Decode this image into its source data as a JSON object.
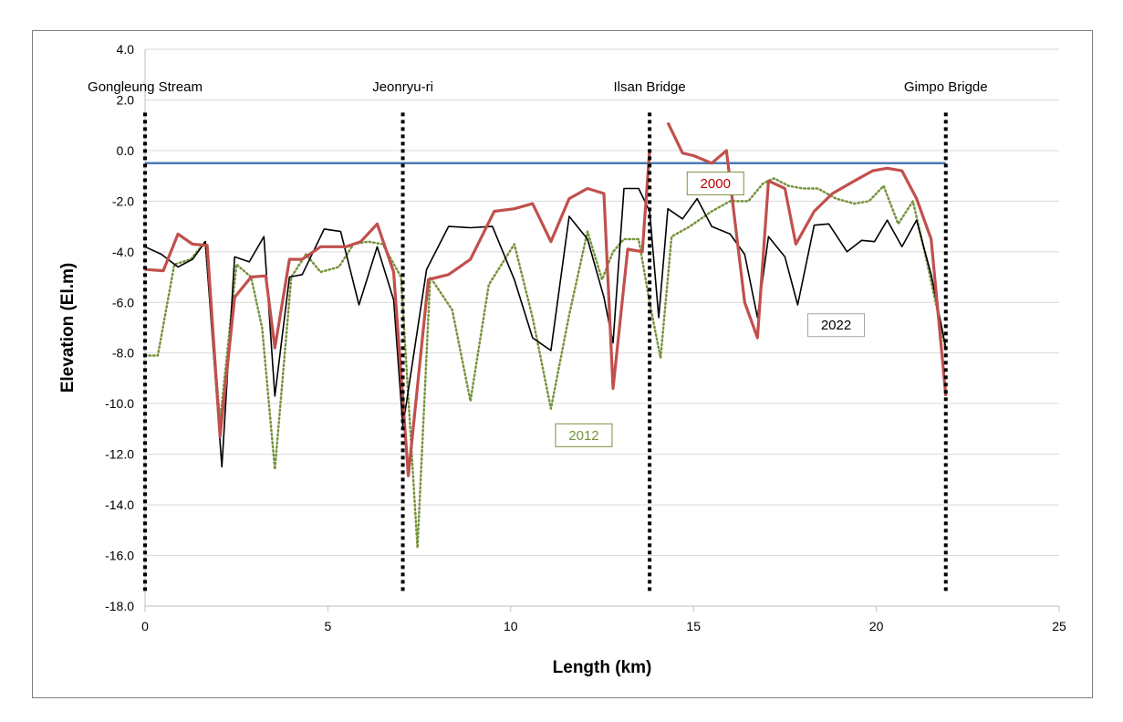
{
  "chart_data": {
    "type": "line",
    "xlabel": "Length (km)",
    "ylabel": "Elevation (El.m)",
    "xlim": [
      0,
      25
    ],
    "ylim": [
      -18,
      4
    ],
    "x_ticks": [
      0,
      5,
      10,
      15,
      20,
      25
    ],
    "y_ticks": [
      -18,
      -16,
      -14,
      -12,
      -10,
      -8,
      -6,
      -4,
      -2,
      0,
      2,
      4
    ],
    "y_tick_labels": [
      "-18.0",
      "-16.0",
      "-14.0",
      "-12.0",
      "-10.0",
      "-8.0",
      "-6.0",
      "-4.0",
      "-2.0",
      "0.0",
      "2.0",
      "4.0"
    ],
    "grid": "horizontal",
    "reference_line": {
      "y": -0.5,
      "color": "#4a7ab5"
    },
    "locations": [
      {
        "name": "Gongleung Stream",
        "x": 0
      },
      {
        "name": "Jeonryu-ri",
        "x": 7.05
      },
      {
        "name": "Ilsan Bridge",
        "x": 13.8
      },
      {
        "name": "Gimpo Brigde",
        "x": 21.9
      }
    ],
    "series": [
      {
        "name": "2000",
        "color": "#c0504d",
        "style": "solid",
        "segments": [
          [
            [
              0,
              -4.7
            ],
            [
              0.5,
              -4.75
            ],
            [
              0.9,
              -3.3
            ],
            [
              1.3,
              -3.7
            ],
            [
              1.7,
              -3.75
            ],
            [
              2.05,
              -11.3
            ],
            [
              2.45,
              -5.8
            ],
            [
              2.9,
              -5.0
            ],
            [
              3.3,
              -4.95
            ],
            [
              3.55,
              -7.8
            ],
            [
              3.95,
              -4.3
            ],
            [
              4.3,
              -4.3
            ],
            [
              4.8,
              -3.8
            ],
            [
              5.5,
              -3.8
            ],
            [
              5.9,
              -3.6
            ],
            [
              6.35,
              -2.9
            ],
            [
              6.8,
              -4.8
            ],
            [
              7.2,
              -12.85
            ],
            [
              7.75,
              -5.1
            ],
            [
              8.3,
              -4.9
            ],
            [
              8.9,
              -4.3
            ],
            [
              9.55,
              -2.4
            ],
            [
              10.1,
              -2.3
            ],
            [
              10.6,
              -2.1
            ],
            [
              11.1,
              -3.6
            ],
            [
              11.6,
              -1.9
            ],
            [
              12.1,
              -1.5
            ],
            [
              12.55,
              -1.7
            ],
            [
              12.8,
              -9.4
            ],
            [
              13.2,
              -3.9
            ],
            [
              13.6,
              -4.0
            ],
            [
              13.8,
              0.0
            ]
          ],
          [
            [
              14.3,
              1.1
            ],
            [
              14.7,
              -0.1
            ],
            [
              15.0,
              -0.2
            ],
            [
              15.5,
              -0.5
            ],
            [
              15.9,
              0.0
            ],
            [
              16.4,
              -6.0
            ],
            [
              16.75,
              -7.4
            ],
            [
              17.05,
              -1.2
            ],
            [
              17.5,
              -1.5
            ],
            [
              17.8,
              -3.7
            ],
            [
              18.3,
              -2.4
            ],
            [
              18.8,
              -1.7
            ],
            [
              19.4,
              -1.2
            ],
            [
              19.9,
              -0.8
            ],
            [
              20.3,
              -0.7
            ],
            [
              20.7,
              -0.8
            ],
            [
              21.1,
              -1.9
            ],
            [
              21.5,
              -3.5
            ],
            [
              21.9,
              -9.7
            ]
          ]
        ]
      },
      {
        "name": "2012",
        "color": "#77933c",
        "style": "dotted",
        "segments": [
          [
            [
              0,
              -8.1
            ],
            [
              0.35,
              -8.1
            ],
            [
              0.8,
              -4.5
            ],
            [
              1.25,
              -4.3
            ],
            [
              1.65,
              -3.6
            ],
            [
              2.05,
              -10.7
            ],
            [
              2.5,
              -4.5
            ],
            [
              2.9,
              -5.0
            ],
            [
              3.2,
              -7.0
            ],
            [
              3.55,
              -12.6
            ],
            [
              4.0,
              -5.0
            ],
            [
              4.4,
              -4.1
            ],
            [
              4.8,
              -4.8
            ],
            [
              5.3,
              -4.6
            ],
            [
              5.7,
              -3.7
            ],
            [
              6.1,
              -3.6
            ],
            [
              6.5,
              -3.7
            ],
            [
              7.0,
              -5.0
            ],
            [
              7.45,
              -15.7
            ],
            [
              7.8,
              -5.0
            ],
            [
              8.4,
              -6.3
            ],
            [
              8.9,
              -9.9
            ],
            [
              9.4,
              -5.3
            ],
            [
              10.1,
              -3.7
            ],
            [
              10.6,
              -6.6
            ],
            [
              11.1,
              -10.2
            ],
            [
              11.6,
              -6.5
            ],
            [
              12.1,
              -3.2
            ],
            [
              12.5,
              -5.1
            ],
            [
              12.8,
              -4.0
            ],
            [
              13.1,
              -3.5
            ],
            [
              13.5,
              -3.5
            ],
            [
              13.8,
              -6.0
            ],
            [
              14.1,
              -8.2
            ],
            [
              14.4,
              -3.4
            ],
            [
              14.9,
              -3.0
            ],
            [
              15.5,
              -2.4
            ],
            [
              16.0,
              -2.0
            ],
            [
              16.5,
              -2.0
            ],
            [
              16.9,
              -1.3
            ],
            [
              17.2,
              -1.1
            ],
            [
              17.6,
              -1.4
            ],
            [
              18.0,
              -1.5
            ],
            [
              18.4,
              -1.5
            ],
            [
              18.9,
              -1.9
            ],
            [
              19.4,
              -2.1
            ],
            [
              19.8,
              -2.0
            ],
            [
              20.2,
              -1.4
            ],
            [
              20.6,
              -2.9
            ],
            [
              21.0,
              -2.0
            ],
            [
              21.4,
              -4.5
            ],
            [
              21.9,
              -7.9
            ]
          ]
        ]
      },
      {
        "name": "2022",
        "color": "#000000",
        "style": "solid",
        "segments": [
          [
            [
              0,
              -3.8
            ],
            [
              0.45,
              -4.1
            ],
            [
              0.9,
              -4.6
            ],
            [
              1.3,
              -4.3
            ],
            [
              1.65,
              -3.6
            ],
            [
              2.1,
              -12.5
            ],
            [
              2.45,
              -4.2
            ],
            [
              2.85,
              -4.4
            ],
            [
              3.25,
              -3.4
            ],
            [
              3.55,
              -9.7
            ],
            [
              3.95,
              -5.0
            ],
            [
              4.3,
              -4.9
            ],
            [
              4.9,
              -3.1
            ],
            [
              5.35,
              -3.2
            ],
            [
              5.85,
              -6.1
            ],
            [
              6.35,
              -3.8
            ],
            [
              6.8,
              -5.9
            ],
            [
              7.05,
              -10.9
            ],
            [
              7.7,
              -4.7
            ],
            [
              8.3,
              -3.0
            ],
            [
              8.9,
              -3.05
            ],
            [
              9.5,
              -3.0
            ],
            [
              10.1,
              -5.1
            ],
            [
              10.6,
              -7.4
            ],
            [
              11.1,
              -7.9
            ],
            [
              11.6,
              -2.6
            ],
            [
              12.1,
              -3.5
            ],
            [
              12.55,
              -5.8
            ],
            [
              12.8,
              -7.6
            ],
            [
              13.1,
              -1.5
            ],
            [
              13.5,
              -1.5
            ],
            [
              13.8,
              -2.4
            ],
            [
              14.05,
              -6.6
            ],
            [
              14.3,
              -2.3
            ],
            [
              14.7,
              -2.7
            ],
            [
              15.1,
              -1.9
            ],
            [
              15.5,
              -3.0
            ],
            [
              16.0,
              -3.3
            ],
            [
              16.4,
              -4.1
            ],
            [
              16.75,
              -6.6
            ],
            [
              17.05,
              -3.4
            ],
            [
              17.5,
              -4.2
            ],
            [
              17.85,
              -6.1
            ],
            [
              18.3,
              -2.95
            ],
            [
              18.7,
              -2.9
            ],
            [
              19.2,
              -4.0
            ],
            [
              19.6,
              -3.55
            ],
            [
              19.95,
              -3.6
            ],
            [
              20.3,
              -2.75
            ],
            [
              20.7,
              -3.8
            ],
            [
              21.1,
              -2.75
            ],
            [
              21.5,
              -4.9
            ],
            [
              21.9,
              -7.8
            ]
          ]
        ]
      }
    ],
    "series_labels": [
      {
        "text": "2000",
        "x": 15.6,
        "y": -1.3,
        "color": "#c00000",
        "border": "#77933c"
      },
      {
        "text": "2012",
        "x": 12.0,
        "y": -11.25,
        "color": "#77933c",
        "border": "#77933c"
      },
      {
        "text": "2022",
        "x": 18.9,
        "y": -6.9,
        "color": "#000000",
        "border": "#a6a6a6"
      }
    ]
  }
}
